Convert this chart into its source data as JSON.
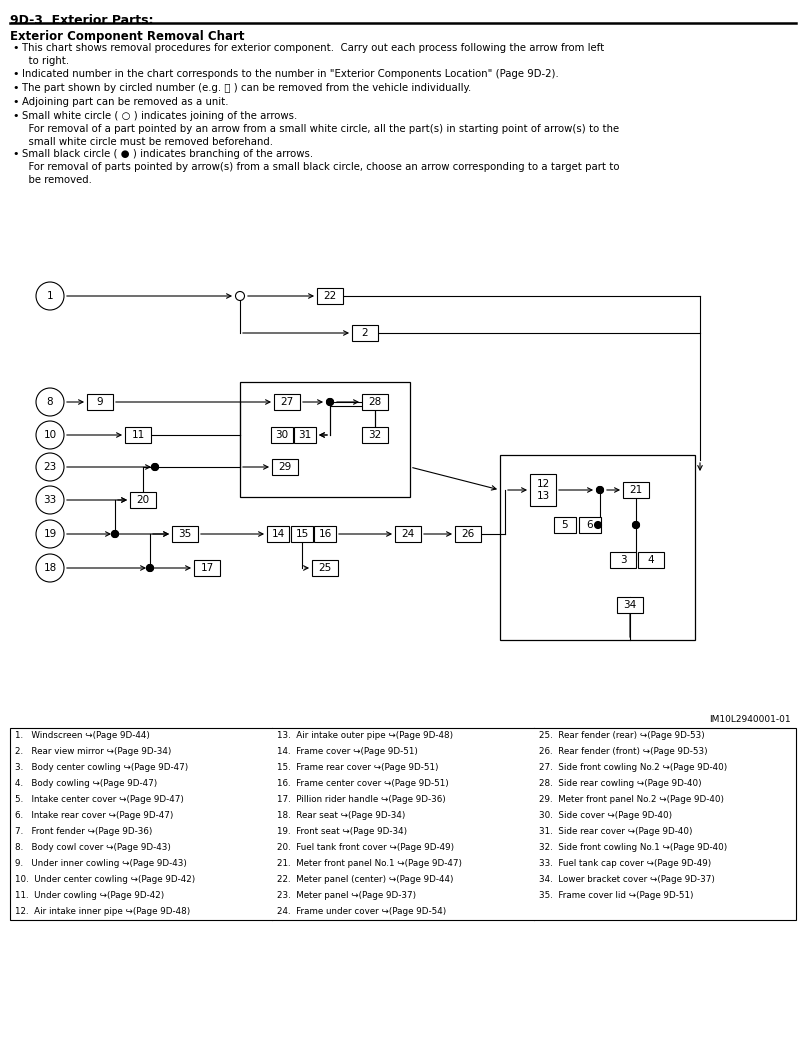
{
  "page_title": "9D-3  Exterior Parts:",
  "section_title": "Exterior Component Removal Chart",
  "image_id": "IM10L2940001-01",
  "legend_cols": [
    [
      "1.   Windscreen ↪(Page 9D-44)",
      "2.   Rear view mirror ↪(Page 9D-34)",
      "3.   Body center cowling ↪(Page 9D-47)",
      "4.   Body cowling ↪(Page 9D-47)",
      "5.   Intake center cover ↪(Page 9D-47)",
      "6.   Intake rear cover ↪(Page 9D-47)",
      "7.   Front fender ↪(Page 9D-36)",
      "8.   Body cowl cover ↪(Page 9D-43)",
      "9.   Under inner cowling ↪(Page 9D-43)",
      "10.  Under center cowling ↪(Page 9D-42)",
      "11.  Under cowling ↪(Page 9D-42)",
      "12.  Air intake inner pipe ↪(Page 9D-48)"
    ],
    [
      "13.  Air intake outer pipe ↪(Page 9D-48)",
      "14.  Frame cover ↪(Page 9D-51)",
      "15.  Frame rear cover ↪(Page 9D-51)",
      "16.  Frame center cover ↪(Page 9D-51)",
      "17.  Pillion rider handle ↪(Page 9D-36)",
      "18.  Rear seat ↪(Page 9D-34)",
      "19.  Front seat ↪(Page 9D-34)",
      "20.  Fuel tank front cover ↪(Page 9D-49)",
      "21.  Meter front panel No.1 ↪(Page 9D-47)",
      "22.  Meter panel (center) ↪(Page 9D-44)",
      "23.  Meter panel ↪(Page 9D-37)",
      "24.  Frame under cover ↪(Page 9D-54)"
    ],
    [
      "25.  Rear fender (rear) ↪(Page 9D-53)",
      "26.  Rear fender (front) ↪(Page 9D-53)",
      "27.  Side front cowling No.2 ↪(Page 9D-40)",
      "28.  Side rear cowling ↪(Page 9D-40)",
      "29.  Meter front panel No.2 ↪(Page 9D-40)",
      "30.  Side cover ↪(Page 9D-40)",
      "31.  Side rear cover ↪(Page 9D-40)",
      "32.  Side front cowling No.1 ↪(Page 9D-40)",
      "33.  Fuel tank cap cover ↪(Page 9D-49)",
      "34.  Lower bracket cover ↪(Page 9D-37)",
      "35.  Frame cover lid ↪(Page 9D-51)",
      ""
    ]
  ]
}
